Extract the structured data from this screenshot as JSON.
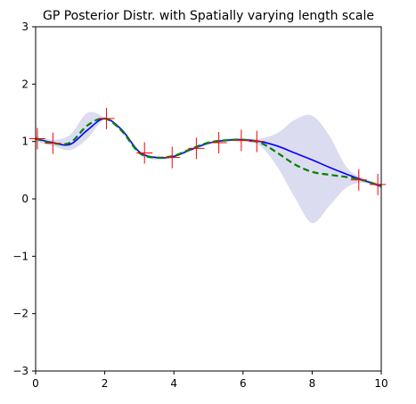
{
  "chart_data": {
    "type": "line",
    "title": "GP Posterior Distr. with Spatially varying length scale",
    "xlabel": "",
    "ylabel": "",
    "xlim": [
      0,
      10
    ],
    "ylim": [
      -3,
      3
    ],
    "xticks": [
      "0",
      "2",
      "4",
      "6",
      "8",
      "10"
    ],
    "yticks": [
      "−3",
      "−2",
      "−1",
      "0",
      "1",
      "2",
      "3"
    ],
    "grid": false,
    "legend": "none",
    "x": [
      0,
      0.5,
      1.0,
      1.5,
      2.0,
      2.5,
      3.0,
      3.5,
      4.0,
      4.5,
      5.0,
      5.5,
      6.0,
      6.5,
      7.0,
      7.5,
      8.0,
      8.5,
      9.0,
      9.5,
      10.0
    ],
    "series": [
      {
        "type": "band",
        "color": "#dcdcf0",
        "lower": [
          1.0,
          0.92,
          0.85,
          1.05,
          1.38,
          1.15,
          0.78,
          0.68,
          0.72,
          0.84,
          0.95,
          1.0,
          1.0,
          0.92,
          0.55,
          0.02,
          -0.42,
          -0.12,
          0.2,
          0.28,
          0.18
        ],
        "upper": [
          1.1,
          1.03,
          1.12,
          1.5,
          1.42,
          1.22,
          0.84,
          0.74,
          0.78,
          0.9,
          1.0,
          1.05,
          1.06,
          1.05,
          1.15,
          1.38,
          1.45,
          1.1,
          0.55,
          0.36,
          0.26
        ]
      },
      {
        "type": "line",
        "color": "#0000ff",
        "style": "solid",
        "values": [
          1.05,
          0.98,
          0.95,
          1.2,
          1.4,
          1.2,
          0.82,
          0.72,
          0.74,
          0.86,
          0.97,
          1.02,
          1.03,
          1.0,
          0.92,
          0.8,
          0.68,
          0.55,
          0.43,
          0.32,
          0.22
        ]
      },
      {
        "type": "line",
        "color": "#008000",
        "style": "dashed",
        "values": [
          1.05,
          0.97,
          0.98,
          1.28,
          1.4,
          1.18,
          0.8,
          0.72,
          0.75,
          0.87,
          0.98,
          1.02,
          1.03,
          0.98,
          0.8,
          0.6,
          0.47,
          0.42,
          0.38,
          0.32,
          0.22
        ]
      },
      {
        "type": "scatter",
        "marker": "+",
        "color": "#ff0000",
        "points": [
          [
            0.05,
            1.05
          ],
          [
            0.5,
            0.97
          ],
          [
            2.05,
            1.4
          ],
          [
            3.15,
            0.8
          ],
          [
            3.95,
            0.72
          ],
          [
            4.65,
            0.88
          ],
          [
            5.3,
            0.98
          ],
          [
            5.95,
            1.02
          ],
          [
            6.4,
            1.0
          ],
          [
            9.35,
            0.33
          ],
          [
            9.9,
            0.25
          ]
        ]
      }
    ]
  }
}
